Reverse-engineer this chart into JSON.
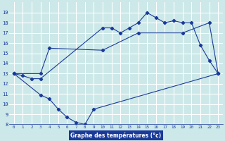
{
  "title": "Graphe des températures (°c)",
  "bg_color": "#cce8e8",
  "grid_color": "#ffffff",
  "line_color": "#1a3a9a",
  "ylim": [
    8,
    20
  ],
  "xlim": [
    -0.5,
    23.5
  ],
  "yticks": [
    8,
    9,
    10,
    11,
    12,
    13,
    14,
    15,
    16,
    17,
    18,
    19
  ],
  "xticks": [
    0,
    1,
    2,
    3,
    4,
    5,
    6,
    7,
    8,
    9,
    10,
    11,
    12,
    13,
    14,
    15,
    16,
    17,
    18,
    19,
    20,
    21,
    22,
    23
  ],
  "line1_x": [
    0,
    1,
    2,
    3,
    10,
    11,
    12,
    13,
    14,
    15,
    16,
    17,
    18,
    19,
    20,
    21,
    22,
    23
  ],
  "line1_y": [
    13,
    12.8,
    12.5,
    12.5,
    17.5,
    17.5,
    17.0,
    17.5,
    18.0,
    19.0,
    18.5,
    18.0,
    18.2,
    18.0,
    18.0,
    15.8,
    14.3,
    13.0
  ],
  "line2_x": [
    0,
    3,
    4,
    10,
    14,
    19,
    22,
    23
  ],
  "line2_y": [
    13,
    13.0,
    15.5,
    15.3,
    17.0,
    17.0,
    18.0,
    13.0
  ],
  "line3_x": [
    0,
    3,
    4,
    5,
    6,
    7,
    8,
    9,
    23
  ],
  "line3_y": [
    13,
    10.9,
    10.5,
    9.5,
    8.7,
    8.2,
    8.0,
    9.5,
    13.0
  ]
}
